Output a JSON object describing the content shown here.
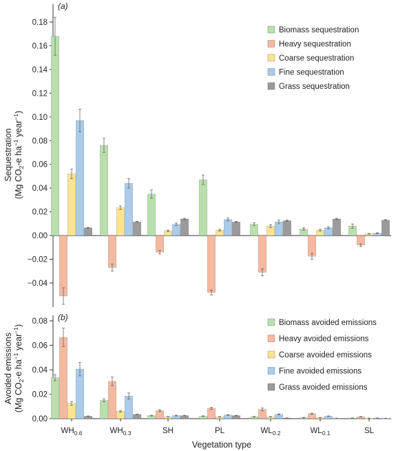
{
  "colors": {
    "Biomass": "#b9dfae",
    "Heavy": "#f4b9a0",
    "Coarse": "#fbe394",
    "Fine": "#aacbea",
    "Grass": "#9b9b9b"
  },
  "xlabel": "Vegetation type",
  "categories": [
    {
      "base": "WH",
      "sub": "0.6"
    },
    {
      "base": "WH",
      "sub": "0.3"
    },
    {
      "base": "SH",
      "sub": ""
    },
    {
      "base": "PL",
      "sub": ""
    },
    {
      "base": "WL",
      "sub": "0.2"
    },
    {
      "base": "WL",
      "sub": "0.1"
    },
    {
      "base": "SL",
      "sub": ""
    }
  ],
  "chart_data": [
    {
      "type": "bar",
      "panel_label": "(a)",
      "ylabel_line1": "Sequestration",
      "ylabel_line2": "(Mg CO2-e ha-1 year-1)",
      "ylim": [
        -0.06,
        0.19
      ],
      "yticks": [
        "0.18",
        "0.16",
        "0.14",
        "0.12",
        "0.10",
        "0.08",
        "0.06",
        "0.04",
        "0.02",
        "0.00",
        "-0.02",
        "-0.04"
      ],
      "legend_position": "top-right",
      "series": [
        {
          "name": "Biomass sequestration",
          "key": "Biomass",
          "values": [
            0.168,
            0.076,
            0.035,
            0.047,
            0.0095,
            0.0055,
            0.008
          ],
          "errors": [
            0.016,
            0.006,
            0.0035,
            0.004,
            0.0012,
            0.001,
            0.0018
          ]
        },
        {
          "name": "Heavy sequestration",
          "key": "Heavy",
          "values": [
            -0.051,
            -0.027,
            -0.014,
            -0.048,
            -0.031,
            -0.0175,
            -0.008
          ],
          "errors": [
            0.007,
            0.003,
            0.0015,
            0.002,
            0.003,
            0.0025,
            0.001
          ]
        },
        {
          "name": "Coarse sequestration",
          "key": "Coarse",
          "values": [
            0.052,
            0.0235,
            0.004,
            0.0045,
            0.008,
            0.0045,
            0.0015
          ],
          "errors": [
            0.004,
            0.0015,
            0.0006,
            0.0007,
            0.0012,
            0.0008,
            0.0003
          ]
        },
        {
          "name": "Fine sequestration",
          "key": "Fine",
          "values": [
            0.097,
            0.044,
            0.0095,
            0.0135,
            0.0115,
            0.0065,
            0.002
          ],
          "errors": [
            0.0095,
            0.004,
            0.001,
            0.0012,
            0.0015,
            0.0008,
            0.0004
          ]
        },
        {
          "name": "Grass sequestration",
          "key": "Grass",
          "values": [
            0.0065,
            0.0115,
            0.014,
            0.0115,
            0.0125,
            0.014,
            0.013
          ],
          "errors": [
            0.0004,
            0.0004,
            0.0005,
            0.0005,
            0.0005,
            0.0005,
            0.0005
          ]
        }
      ]
    },
    {
      "type": "bar",
      "panel_label": "(b)",
      "ylabel_line1": "Avoided emissions",
      "ylabel_line2": "(Mg CO2-e ha-1 year-1)",
      "ylim": [
        0,
        0.08
      ],
      "yticks": [
        "0.08",
        "0.06",
        "0.04",
        "0.02",
        "0.00"
      ],
      "legend_position": "top-right",
      "series": [
        {
          "name": "Biomass avoided emissions",
          "key": "Biomass",
          "values": [
            0.0335,
            0.015,
            0.0025,
            0.002,
            0.0015,
            0.0008,
            0.0005
          ],
          "errors": [
            0.0025,
            0.0012,
            0.0003,
            0.0003,
            0.0003,
            0.0002,
            0.0001
          ]
        },
        {
          "name": "Heavy avoided emissions",
          "key": "Heavy",
          "values": [
            0.0665,
            0.0305,
            0.0065,
            0.0085,
            0.0075,
            0.004,
            0.0015
          ],
          "errors": [
            0.0075,
            0.0035,
            0.0008,
            0.0008,
            0.0012,
            0.0005,
            0.0002
          ]
        },
        {
          "name": "Coarse avoided emissions",
          "key": "Coarse",
          "values": [
            0.0125,
            0.006,
            0.0015,
            0.0015,
            0.0015,
            0.0008,
            0.0003
          ],
          "errors": [
            0.0015,
            0.0006,
            0.0002,
            0.0002,
            0.0002,
            0.0001,
            0.0001
          ]
        },
        {
          "name": "Fine avoided emissions",
          "key": "Fine",
          "values": [
            0.0405,
            0.0185,
            0.0025,
            0.003,
            0.0035,
            0.002,
            0.0005
          ],
          "errors": [
            0.0055,
            0.0025,
            0.0003,
            0.0003,
            0.0004,
            0.0002,
            0.0001
          ]
        },
        {
          "name": "Grass avoided emissions",
          "key": "Grass",
          "values": [
            0.002,
            0.0035,
            0.0025,
            0.0025,
            0.0005,
            0.0003,
            0.0002
          ],
          "errors": [
            0.0002,
            0.0002,
            0.0002,
            0.0002,
            0.0001,
            0.0001,
            0.0001
          ]
        }
      ]
    }
  ]
}
